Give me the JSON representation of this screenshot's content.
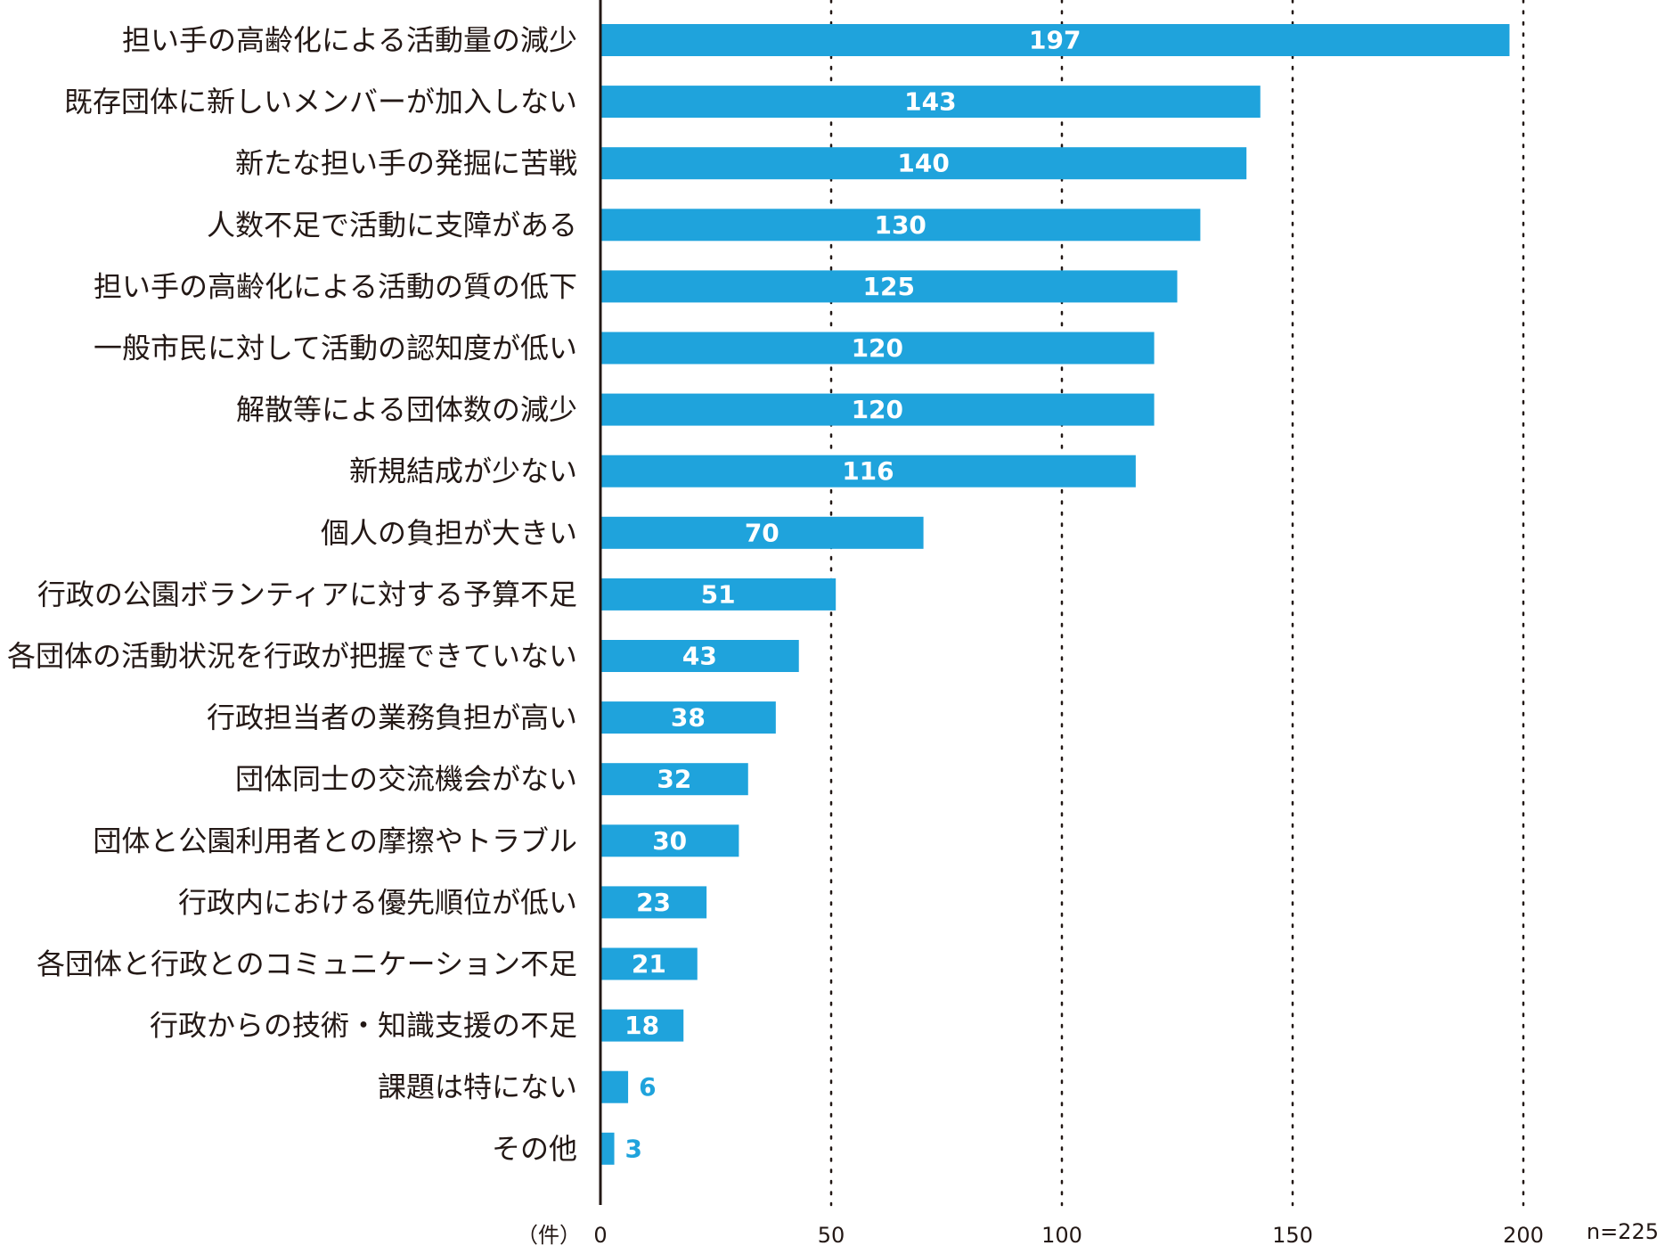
{
  "colors": {
    "bar": "#1fa3dc",
    "axis": "#231815",
    "grid": "#231815",
    "text": "#231815"
  },
  "chart_data": {
    "type": "bar",
    "orientation": "horizontal",
    "categories": [
      "担い手の高齢化による活動量の減少",
      "既存団体に新しいメンバーが加入しない",
      "新たな担い手の発掘に苦戦",
      "人数不足で活動に支障がある",
      "担い手の高齢化による活動の質の低下",
      "一般市民に対して活動の認知度が低い",
      "解散等による団体数の減少",
      "新規結成が少ない",
      "個人の負担が大きい",
      "行政の公園ボランティアに対する予算不足",
      "各団体の活動状況を行政が把握できていない",
      "行政担当者の業務負担が高い",
      "団体同士の交流機会がない",
      "団体と公園利用者との摩擦やトラブル",
      "行政内における優先順位が低い",
      "各団体と行政とのコミュニケーション不足",
      "行政からの技術・知識支援の不足",
      "課題は特にない",
      "その他"
    ],
    "values": [
      197,
      143,
      140,
      130,
      125,
      120,
      120,
      116,
      70,
      51,
      43,
      38,
      32,
      30,
      23,
      21,
      18,
      6,
      3
    ],
    "xlim": [
      0,
      200
    ],
    "xticks": [
      0,
      50,
      100,
      150,
      200
    ],
    "tick_labels": [
      "0",
      "50",
      "100",
      "150",
      "200"
    ],
    "grid": "vertical dotted",
    "unit_label": "（件）",
    "n_label": "n=225",
    "title": "",
    "xlabel": "",
    "ylabel": ""
  }
}
